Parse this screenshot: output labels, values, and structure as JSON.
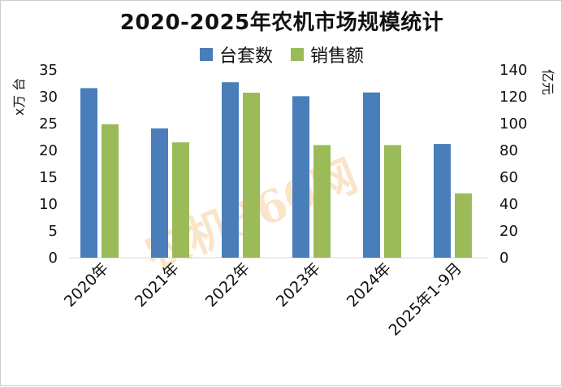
{
  "chart_data": {
    "type": "bar",
    "title": "2020-2025年农机市场规模统计",
    "categories": [
      "2020年",
      "2021年",
      "2022年",
      "2023年",
      "2024年",
      "2025年1-9月"
    ],
    "series": [
      {
        "name": "台套数",
        "axis": "left",
        "color": "#4a7ebb",
        "values": [
          31.6,
          24.1,
          32.7,
          30.1,
          30.8,
          21.2
        ]
      },
      {
        "name": "销售额",
        "axis": "right",
        "color": "#9bbb59",
        "values": [
          99.5,
          86.0,
          123.0,
          84.0,
          84.0,
          48.0
        ]
      }
    ],
    "y_left": {
      "label": "x万 台",
      "ylim": [
        0,
        35
      ],
      "ticks": [
        "0",
        "5",
        "10",
        "15",
        "20",
        "25",
        "30",
        "35"
      ]
    },
    "y_right": {
      "label": "亿元",
      "ylim": [
        0,
        140
      ],
      "ticks": [
        "0",
        "20",
        "40",
        "60",
        "80",
        "100",
        "120",
        "140"
      ]
    },
    "grid": false,
    "legend": "top"
  },
  "watermark": "农机360网"
}
